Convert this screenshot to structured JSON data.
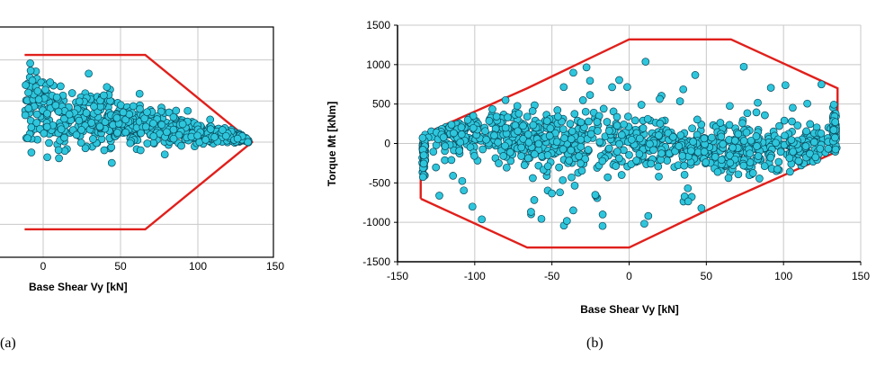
{
  "figure": {
    "panel_labels": [
      "(a)",
      "(b)"
    ]
  },
  "colors": {
    "envelope": "#e0201c",
    "marker_fill": "#2ec6dc",
    "marker_edge": "#0a4a5c",
    "grid": "#c8c8c8"
  },
  "chart_data": [
    {
      "type": "scatter",
      "panel": "(a)",
      "xlabel": "Base Shear  Vy [kN]",
      "ylabel": "",
      "xlim": [
        -12,
        150
      ],
      "ylim": [
        -700,
        700
      ],
      "xticks": [
        0,
        50,
        100,
        150
      ],
      "grid": true,
      "envelope": {
        "x": [
          -12,
          0,
          66,
          135,
          66,
          0,
          -12
        ],
        "y": [
          530,
          530,
          530,
          0,
          -530,
          -530,
          -530
        ]
      },
      "points": {
        "count": 650,
        "x_range": [
          -12,
          135
        ],
        "y_range": [
          -500,
          530
        ]
      }
    },
    {
      "type": "scatter",
      "panel": "(b)",
      "xlabel": "Base Shear  Vy [kN]",
      "ylabel": "Torque  Mt [kNm]",
      "xlim": [
        -150,
        150
      ],
      "ylim": [
        -1500,
        1500
      ],
      "xticks": [
        -150,
        -100,
        -50,
        0,
        50,
        100,
        150
      ],
      "yticks": [
        -1500,
        -1000,
        -500,
        0,
        500,
        1000,
        1500
      ],
      "grid": true,
      "envelope": {
        "x": [
          -135,
          -135,
          -66,
          0,
          66,
          135,
          135,
          66,
          0,
          -66,
          -135
        ],
        "y": [
          -700,
          100,
          700,
          1320,
          1320,
          700,
          -100,
          -700,
          -1320,
          -1320,
          -700
        ]
      },
      "points": {
        "count": 1100,
        "x_range": [
          -135,
          135
        ],
        "y_range": [
          -1050,
          1080
        ]
      }
    }
  ]
}
